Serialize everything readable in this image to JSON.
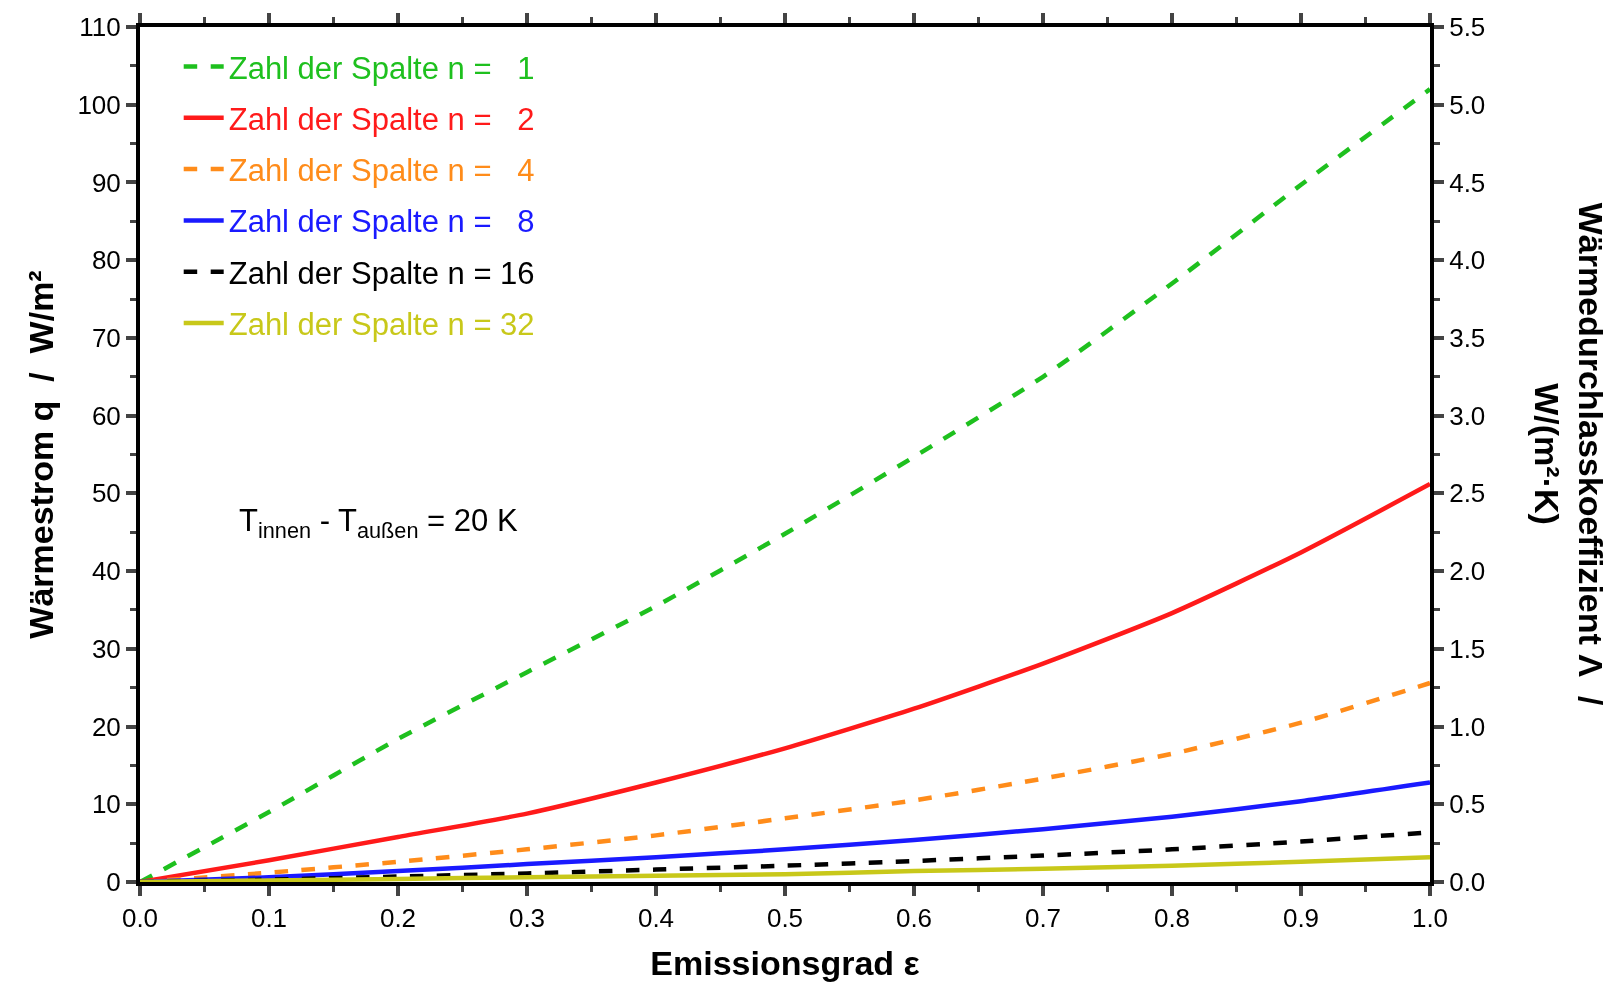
{
  "chart_data": {
    "type": "line",
    "xlabel": "Emissionsgrad ε",
    "ylabel": "Wärmestrom q  /  W/m²",
    "y2label": "Wärmedurchlasskoeffizient Λ  /\nW/(m²·K)",
    "x": [
      0,
      0.1,
      0.2,
      0.3,
      0.4,
      0.5,
      0.6,
      0.7,
      0.8,
      0.9,
      1.0
    ],
    "series": [
      {
        "name": "Zahl der Spalte n =   1",
        "color": "#1ec01e",
        "line_style": "dashed",
        "values": [
          0,
          9,
          18.4,
          27,
          35.5,
          44.8,
          54.7,
          65,
          77,
          89.7,
          102
        ]
      },
      {
        "name": "Zahl der Spalte n =   2",
        "color": "#ff1a1a",
        "line_style": "solid",
        "values": [
          0,
          2.8,
          5.8,
          8.8,
          12.8,
          17.2,
          22.3,
          28.1,
          34.6,
          42.4,
          51.2
        ]
      },
      {
        "name": "Zahl der Spalte n =   4",
        "color": "#ff8c1a",
        "line_style": "dashed",
        "values": [
          0,
          1.2,
          2.6,
          4.2,
          6,
          8.2,
          10.5,
          13.3,
          16.5,
          20.5,
          25.6
        ]
      },
      {
        "name": "Zahl der Spalte n =   8",
        "color": "#1a1aff",
        "line_style": "solid",
        "values": [
          0,
          0.6,
          1.4,
          2.3,
          3.2,
          4.2,
          5.4,
          6.8,
          8.4,
          10.4,
          12.8
        ]
      },
      {
        "name": "Zahl der Spalte n = 16",
        "color": "#000000",
        "line_style": "dashed",
        "values": [
          0,
          0.3,
          0.7,
          1.1,
          1.6,
          2.1,
          2.7,
          3.4,
          4.2,
          5.2,
          6.4
        ]
      },
      {
        "name": "Zahl der Spalte n = 32",
        "color": "#c8c81a",
        "line_style": "solid",
        "values": [
          0,
          0.2,
          0.4,
          0.6,
          0.8,
          1.0,
          1.4,
          1.7,
          2.1,
          2.6,
          3.2
        ]
      }
    ],
    "xlim": [
      0,
      1.0
    ],
    "xticks": [
      {
        "value": 0,
        "label": "0.0"
      },
      0.1,
      0.2,
      0.3,
      0.4,
      0.5,
      0.6,
      0.7,
      0.8,
      0.9,
      {
        "value": 1,
        "label": "1.0"
      }
    ],
    "ylim": [
      0,
      110
    ],
    "yticks": [
      0,
      10,
      20,
      30,
      40,
      50,
      60,
      70,
      80,
      90,
      100,
      110
    ],
    "y2lim": [
      0,
      5.5
    ],
    "y2ticks": [
      {
        "value": 0,
        "label": "0.0"
      },
      0.5,
      {
        "value": 1,
        "label": "1.0"
      },
      1.5,
      {
        "value": 2,
        "label": "2.0"
      },
      2.5,
      {
        "value": 3,
        "label": "3.0"
      },
      3.5,
      {
        "value": 4,
        "label": "4.0"
      },
      4.5,
      {
        "value": 5,
        "label": "5.0"
      },
      5.5
    ],
    "annotations": [
      "T$_{innen}$ - T$_{außen}$ = 20 K"
    ],
    "legend": "top left",
    "marker": "none"
  }
}
